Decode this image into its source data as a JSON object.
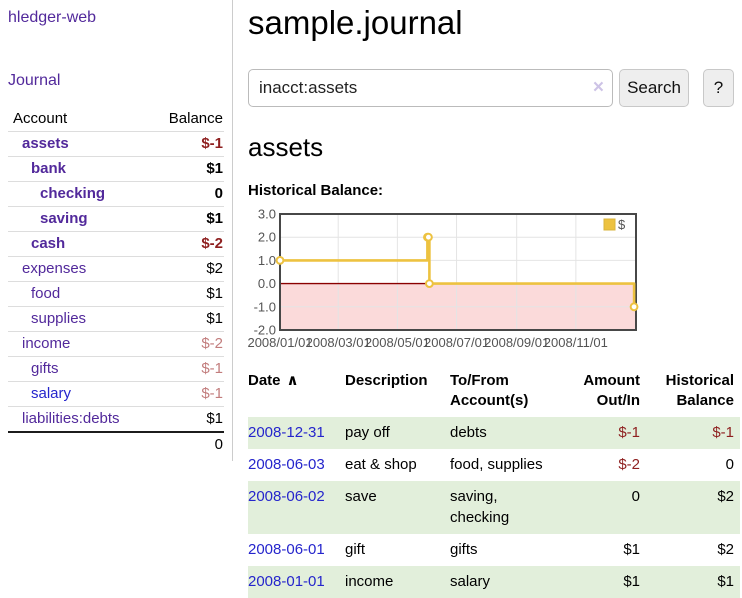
{
  "app": {
    "title": "hledger-web"
  },
  "sidebar": {
    "journal_link": "Journal",
    "accounts": {
      "header_account": "Account",
      "header_balance": "Balance",
      "rows": [
        {
          "name": "assets",
          "level": 1,
          "emphasized": true,
          "link_style": "purple",
          "balance": "$-1",
          "balance_style": "negative-strong"
        },
        {
          "name": "bank",
          "level": 2,
          "emphasized": true,
          "link_style": "purple",
          "balance": "$1",
          "balance_style": "normal"
        },
        {
          "name": "checking",
          "level": 3,
          "emphasized": true,
          "link_style": "purple",
          "balance": "0",
          "balance_style": "normal"
        },
        {
          "name": "saving",
          "level": 3,
          "emphasized": true,
          "link_style": "purple",
          "balance": "$1",
          "balance_style": "normal"
        },
        {
          "name": "cash",
          "level": 2,
          "emphasized": true,
          "link_style": "purple",
          "balance": "$-2",
          "balance_style": "negative-strong"
        },
        {
          "name": "expenses",
          "level": 1,
          "emphasized": false,
          "link_style": "purple",
          "balance": "$2",
          "balance_style": "normal"
        },
        {
          "name": "food",
          "level": 2,
          "emphasized": false,
          "link_style": "purple",
          "balance": "$1",
          "balance_style": "normal"
        },
        {
          "name": "supplies",
          "level": 2,
          "emphasized": false,
          "link_style": "purple",
          "balance": "$1",
          "balance_style": "normal"
        },
        {
          "name": "income",
          "level": 1,
          "emphasized": false,
          "link_style": "purple",
          "balance": "$-2",
          "balance_style": "negative-soft"
        },
        {
          "name": "gifts",
          "level": 2,
          "emphasized": false,
          "link_style": "purple",
          "balance": "$-1",
          "balance_style": "negative-soft"
        },
        {
          "name": "salary",
          "level": 2,
          "emphasized": false,
          "link_style": "blue",
          "balance": "$-1",
          "balance_style": "negative-soft"
        },
        {
          "name": "liabilities:debts",
          "level": 1,
          "emphasized": false,
          "link_style": "purple",
          "balance": "$1",
          "balance_style": "normal"
        }
      ],
      "total": "0"
    }
  },
  "main": {
    "title": "sample.journal",
    "search": {
      "value": "inacct:assets",
      "clear_icon": "×",
      "search_button": "Search",
      "help_button": "?"
    },
    "account_heading": "assets",
    "register": {
      "headers": {
        "date": "Date",
        "sort_indicator": "∧",
        "description": "Description",
        "accounts": "To/From Account(s)",
        "amount": "Amount Out/In",
        "balance": "Historical Balance"
      },
      "rows": [
        {
          "date": "2008-12-31",
          "description": "pay off",
          "accounts": "debts",
          "amount": "$-1",
          "amount_negative": true,
          "balance": "$-1",
          "balance_negative": true,
          "shaded": true
        },
        {
          "date": "2008-06-03",
          "description": "eat & shop",
          "accounts": "food, supplies",
          "amount": "$-2",
          "amount_negative": true,
          "balance": "0",
          "balance_negative": false,
          "shaded": false
        },
        {
          "date": "2008-06-02",
          "description": "save",
          "accounts": "saving, checking",
          "amount": "0",
          "amount_negative": false,
          "balance": "$2",
          "balance_negative": false,
          "shaded": true
        },
        {
          "date": "2008-06-01",
          "description": "gift",
          "accounts": "gifts",
          "amount": "$1",
          "amount_negative": false,
          "balance": "$2",
          "balance_negative": false,
          "shaded": false
        },
        {
          "date": "2008-01-01",
          "description": "income",
          "accounts": "salary",
          "amount": "$1",
          "amount_negative": false,
          "balance": "$1",
          "balance_negative": false,
          "shaded": true
        }
      ]
    }
  },
  "chart_data": {
    "type": "line",
    "title": "Historical Balance:",
    "series": [
      {
        "name": "$",
        "step": true,
        "points": [
          [
            "2008-01-01",
            1
          ],
          [
            "2008-06-01",
            2
          ],
          [
            "2008-06-02",
            2
          ],
          [
            "2008-06-03",
            0
          ],
          [
            "2008-12-31",
            -1
          ]
        ]
      }
    ],
    "x_domain": [
      "2008-01-01",
      "2009-01-02"
    ],
    "ylim": [
      -2,
      3
    ],
    "x_ticks": [
      "2008/01/01",
      "2008/03/01",
      "2008/05/01",
      "2008/07/01",
      "2008/09/01",
      "2008/11/01"
    ],
    "y_ticks": [
      "3.0",
      "2.0",
      "1.0",
      "0.0",
      "-1.0",
      "-2.0"
    ],
    "legend": {
      "label": "$",
      "position": "top-right"
    },
    "grid": true
  },
  "colors": {
    "accent_purple": "#52299b",
    "link_blue": "#2525cc",
    "negative_strong": "#8e1f1f",
    "negative_soft": "#c27d7d",
    "row_shade_green": "#e2efdb",
    "series_gold": "#edc240",
    "negative_region_pink": "#fbdada",
    "zero_line_red": "#8b0000",
    "grid_line": "#e4e4e4",
    "plot_border": "#474747",
    "axis_text": "#545454"
  }
}
